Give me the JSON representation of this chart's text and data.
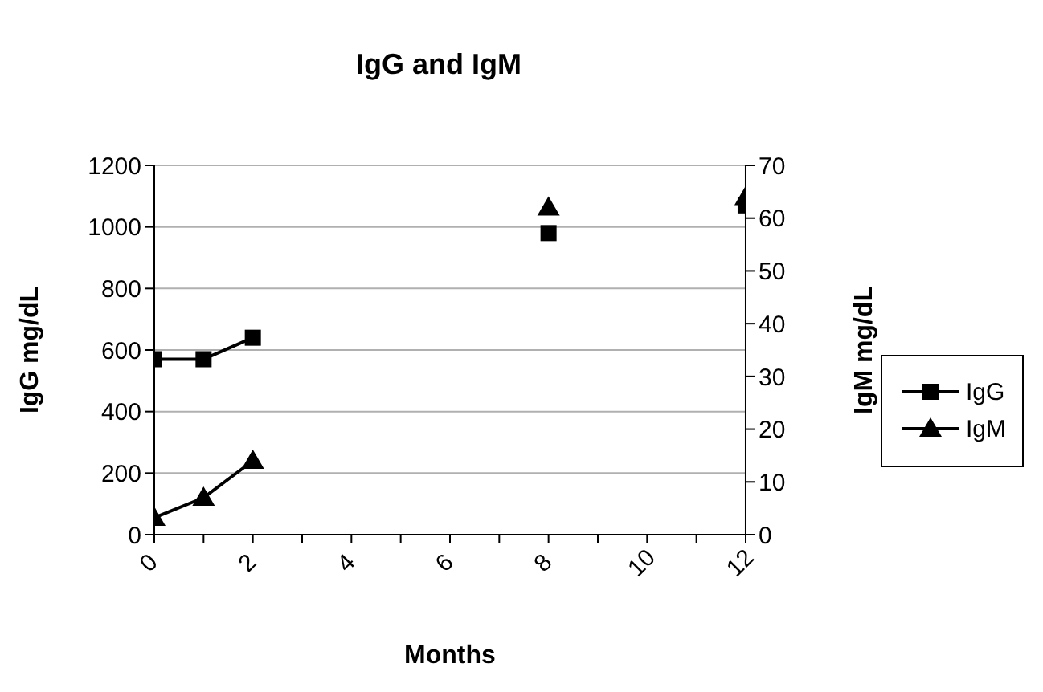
{
  "chart_data": {
    "type": "line",
    "title": "IgG and IgM",
    "xlabel": "Months",
    "ylabel": "IgG mg/dL",
    "y2label": "IgM mg/dL",
    "x": [
      0,
      1,
      2,
      3,
      4,
      5,
      6,
      7,
      8,
      9,
      10,
      11,
      12
    ],
    "series": [
      {
        "name": "IgG",
        "color": "#000000",
        "marker": "square",
        "values": [
          570,
          570,
          640,
          null,
          null,
          null,
          null,
          null,
          980,
          null,
          null,
          null,
          1070
        ]
      },
      {
        "name": "IgM",
        "color": "#000000",
        "marker": "triangle",
        "axis": "y2",
        "values": [
          3.2,
          7,
          14,
          null,
          null,
          null,
          null,
          null,
          62,
          null,
          null,
          null,
          64
        ]
      }
    ],
    "xlim": [
      0,
      12
    ],
    "xticks": [
      0,
      {
        "value": 1,
        "label": null
      },
      2,
      {
        "value": 3,
        "label": null
      },
      4,
      {
        "value": 5,
        "label": null
      },
      6,
      {
        "value": 7,
        "label": null
      },
      8,
      {
        "value": 9,
        "label": null
      },
      10,
      {
        "value": 11,
        "label": null
      },
      12
    ],
    "ylim": [
      0,
      1200
    ],
    "yticks": [
      0,
      200,
      400,
      600,
      800,
      1000,
      1200
    ],
    "y2lim": [
      0,
      70
    ],
    "y2ticks": [
      0,
      10,
      20,
      30,
      40,
      50,
      60,
      70
    ],
    "grid": "y",
    "legend": "right",
    "line_style": "solid"
  }
}
